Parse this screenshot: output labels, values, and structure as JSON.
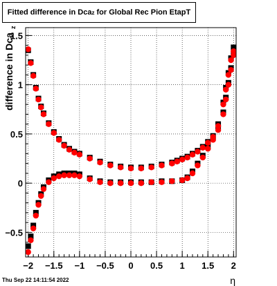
{
  "chart_data": {
    "type": "scatter",
    "title_main": "Fitted difference in Dca",
    "title_sub": "z",
    "title_rest": " for Global Rec Pion EtapT",
    "ylabel_main": "difference in Dca",
    "ylabel_sub": "z",
    "xlabel": "η",
    "timestamp": "Thu Sep 22 14:11:54 2022",
    "xlim": [
      -2.05,
      2.05
    ],
    "ylim": [
      -0.75,
      1.58
    ],
    "x_ticks": [
      -2,
      -1.5,
      -1,
      -0.5,
      0,
      0.5,
      1,
      1.5,
      2
    ],
    "x_tick_labels": [
      "−2",
      "−1.5",
      "−1",
      "−0.5",
      "0",
      "0.5",
      "1",
      "1.5",
      "2"
    ],
    "y_ticks": [
      -0.5,
      0,
      0.5,
      1,
      1.5
    ],
    "y_tick_labels": [
      "−0.5",
      "0",
      "0.5",
      "1",
      "1.5"
    ],
    "grid": true,
    "colors": {
      "series_black": "#000000",
      "series_red": "#ff0000"
    },
    "series": [
      {
        "color": "#000000",
        "marker": "square",
        "x": [
          -2.0,
          -1.95,
          -1.9,
          -1.85,
          -1.8,
          -1.75,
          -1.7,
          -1.6,
          -1.5,
          -1.4,
          -1.3,
          -1.2,
          -1.1,
          -1.0,
          -0.8,
          -0.6,
          -0.4,
          -0.2,
          0.0,
          0.2,
          0.4,
          0.6,
          0.8,
          0.9,
          1.0,
          1.1,
          1.2,
          1.3,
          1.4,
          1.5,
          1.6,
          1.7,
          1.8,
          1.85,
          1.9,
          1.95,
          2.0
        ],
        "y": [
          1.35,
          1.23,
          1.1,
          0.97,
          0.86,
          0.78,
          0.71,
          0.61,
          0.52,
          0.45,
          0.39,
          0.35,
          0.32,
          0.3,
          0.26,
          0.22,
          0.19,
          0.17,
          0.16,
          0.16,
          0.17,
          0.19,
          0.21,
          0.23,
          0.25,
          0.27,
          0.3,
          0.33,
          0.37,
          0.42,
          0.48,
          0.6,
          0.82,
          0.97,
          1.12,
          1.27,
          1.38
        ]
      },
      {
        "color": "#000000",
        "marker": "square",
        "x": [
          -2.0,
          -1.95,
          -1.9,
          -1.85,
          -1.8,
          -1.75,
          -1.7,
          -1.6,
          -1.5,
          -1.4,
          -1.3,
          -1.2,
          -1.1,
          -1.0,
          -0.8,
          -0.6,
          -0.4,
          -0.2,
          0.0,
          0.2,
          0.4,
          0.6,
          0.8,
          1.0,
          1.1,
          1.2,
          1.3,
          1.4,
          1.5,
          1.6,
          1.7,
          1.8,
          1.85,
          1.9,
          1.95,
          2.0
        ],
        "y": [
          -0.64,
          -0.54,
          -0.43,
          -0.3,
          -0.2,
          -0.11,
          -0.04,
          0.03,
          0.07,
          0.09,
          0.1,
          0.1,
          0.1,
          0.09,
          0.05,
          0.02,
          0.01,
          0.01,
          0.01,
          0.01,
          0.01,
          0.02,
          0.02,
          0.03,
          0.06,
          0.12,
          0.2,
          0.28,
          0.37,
          0.46,
          0.56,
          0.72,
          0.87,
          1.02,
          1.17,
          1.32
        ]
      },
      {
        "color": "#ff0000",
        "marker": "circle",
        "x": [
          -2.0,
          -1.95,
          -1.9,
          -1.85,
          -1.8,
          -1.75,
          -1.7,
          -1.6,
          -1.5,
          -1.4,
          -1.3,
          -1.2,
          -1.1,
          -1.0,
          -0.8,
          -0.6,
          -0.4,
          -0.2,
          0.0,
          0.2,
          0.4,
          0.6,
          0.8,
          0.9,
          1.0,
          1.1,
          1.2,
          1.3,
          1.4,
          1.5,
          1.6,
          1.7,
          1.8,
          1.85,
          1.9,
          1.95,
          2.0
        ],
        "y": [
          1.36,
          1.22,
          1.09,
          0.96,
          0.85,
          0.77,
          0.7,
          0.6,
          0.51,
          0.44,
          0.38,
          0.34,
          0.31,
          0.29,
          0.25,
          0.21,
          0.18,
          0.16,
          0.15,
          0.15,
          0.16,
          0.18,
          0.2,
          0.22,
          0.24,
          0.26,
          0.29,
          0.32,
          0.36,
          0.41,
          0.47,
          0.58,
          0.8,
          0.95,
          1.1,
          1.25,
          1.34
        ]
      },
      {
        "color": "#ff0000",
        "marker": "circle",
        "x": [
          -2.0,
          -1.95,
          -1.9,
          -1.85,
          -1.8,
          -1.75,
          -1.7,
          -1.6,
          -1.5,
          -1.4,
          -1.3,
          -1.2,
          -1.1,
          -1.0,
          -0.8,
          -0.6,
          -0.4,
          -0.2,
          0.0,
          0.2,
          0.4,
          0.6,
          0.8,
          1.0,
          1.1,
          1.2,
          1.3,
          1.4,
          1.5,
          1.6,
          1.7,
          1.8,
          1.85,
          1.9,
          1.95,
          2.0
        ],
        "y": [
          -0.7,
          -0.58,
          -0.46,
          -0.33,
          -0.22,
          -0.13,
          -0.06,
          0.01,
          0.05,
          0.07,
          0.08,
          0.08,
          0.08,
          0.07,
          0.04,
          0.01,
          0.0,
          0.0,
          0.0,
          0.0,
          0.01,
          0.01,
          0.02,
          0.03,
          0.05,
          0.1,
          0.18,
          0.26,
          0.35,
          0.44,
          0.54,
          0.7,
          0.85,
          1.0,
          1.15,
          1.3
        ]
      }
    ]
  }
}
